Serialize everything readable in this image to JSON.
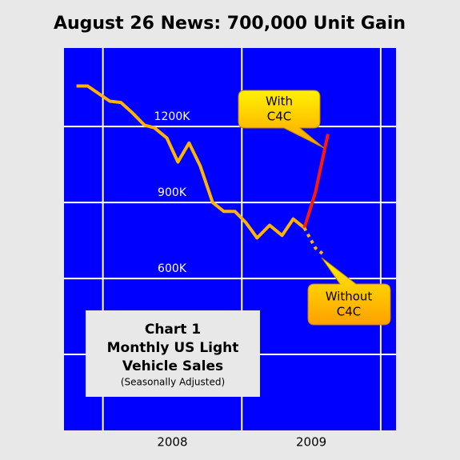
{
  "chart_data": {
    "type": "line",
    "title": "August 26 News: 700,000 Unit Gain",
    "xlim": [
      2007.72,
      2010.11
    ],
    "ylim": [
      0,
      1510
    ],
    "xgrid": [
      2008,
      2009,
      2010
    ],
    "x_labels": [
      {
        "value": 2008.5,
        "label": "2008"
      },
      {
        "value": 2009.5,
        "label": "2009"
      }
    ],
    "yticks": [
      {
        "value": 300
      },
      {
        "value": 600,
        "label": "600K"
      },
      {
        "value": 900,
        "label": "900K"
      },
      {
        "value": 1200,
        "label": "1200K"
      }
    ],
    "grid": true,
    "series": [
      {
        "color": "#ffb400",
        "style": "solid",
        "x": [
          2007.81,
          2007.89,
          2007.97,
          2008.05,
          2008.13,
          2008.21,
          2008.3,
          2008.37,
          2008.46,
          2008.54,
          2008.62,
          2008.7,
          2008.79,
          2008.87,
          2008.95,
          2009.03,
          2009.11,
          2009.2,
          2009.29,
          2009.37,
          2009.45
        ],
        "values": [
          1360,
          1360,
          1330,
          1300,
          1295,
          1255,
          1205,
          1195,
          1155,
          1060,
          1135,
          1045,
          900,
          865,
          865,
          820,
          760,
          810,
          770,
          835,
          800
        ]
      },
      {
        "color": "#ff1a00",
        "style": "solid",
        "x": [
          2009.45,
          2009.53,
          2009.62
        ],
        "values": [
          800,
          940,
          1170
        ]
      },
      {
        "color": "#ffb400",
        "style": "dotted",
        "x": [
          2009.45,
          2009.53,
          2009.6
        ],
        "values": [
          800,
          720,
          690
        ]
      }
    ],
    "annotations": [
      {
        "lines": [
          "With",
          "C4C"
        ]
      },
      {
        "lines": [
          "Without",
          "C4C"
        ]
      }
    ],
    "text_box": {
      "lines": [
        "Chart 1",
        "Monthly US Light",
        "Vehicle Sales"
      ],
      "note": "(Seasonally Adjusted)"
    }
  }
}
